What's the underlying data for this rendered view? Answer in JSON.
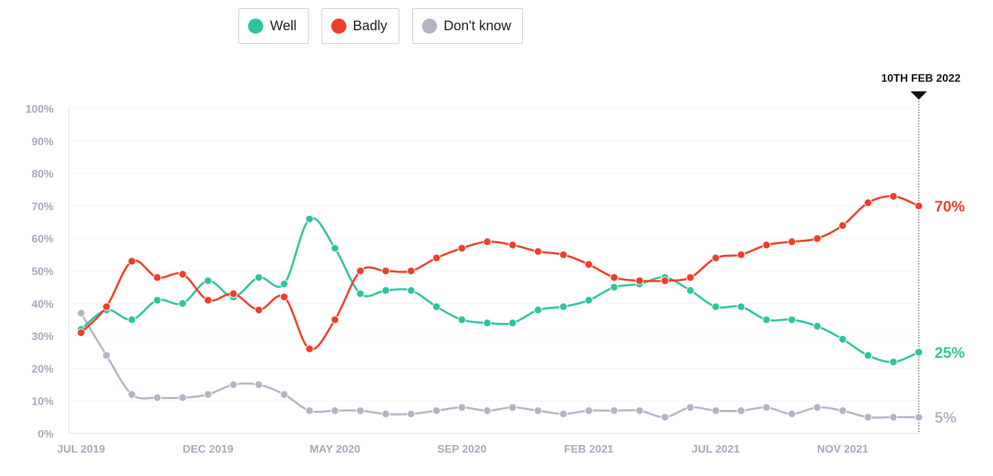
{
  "legend": [
    {
      "label": "Well",
      "color": "#2ec4a0"
    },
    {
      "label": "Badly",
      "color": "#ef3e2a"
    },
    {
      "label": "Don't know",
      "color": "#b2b6c4"
    }
  ],
  "chart_data": {
    "type": "line",
    "title": "",
    "xlabel": "",
    "ylabel": "",
    "ylim": [
      0,
      100
    ],
    "y_ticks": [
      "0%",
      "10%",
      "20%",
      "30%",
      "40%",
      "50%",
      "60%",
      "70%",
      "80%",
      "90%",
      "100%"
    ],
    "x_tick_labels": [
      {
        "label": "JUL 2019",
        "index": 0
      },
      {
        "label": "DEC 2019",
        "index": 5
      },
      {
        "label": "MAY 2020",
        "index": 10
      },
      {
        "label": "SEP 2020",
        "index": 15
      },
      {
        "label": "FEB 2021",
        "index": 20
      },
      {
        "label": "JUL 2021",
        "index": 25
      },
      {
        "label": "NOV 2021",
        "index": 30
      }
    ],
    "marker_label": "10TH FEB 2022",
    "grid": true,
    "series": [
      {
        "name": "Well",
        "color": "#2ec4a0",
        "end_label": "25%",
        "values": [
          32,
          38,
          35,
          41,
          40,
          47,
          42,
          48,
          46,
          66,
          57,
          43,
          44,
          44,
          39,
          35,
          34,
          34,
          38,
          39,
          41,
          45,
          46,
          48,
          44,
          39,
          39,
          35,
          35,
          33,
          29,
          24,
          22,
          25
        ]
      },
      {
        "name": "Badly",
        "color": "#ef3e2a",
        "end_label": "70%",
        "values": [
          31,
          39,
          53,
          48,
          49,
          41,
          43,
          38,
          42,
          26,
          35,
          50,
          50,
          50,
          54,
          57,
          59,
          58,
          56,
          55,
          52,
          48,
          47,
          47,
          48,
          54,
          55,
          58,
          59,
          60,
          64,
          71,
          73,
          70
        ]
      },
      {
        "name": "Don't know",
        "color": "#b2b6c4",
        "end_label": "5%",
        "values": [
          37,
          24,
          12,
          11,
          11,
          12,
          15,
          15,
          12,
          7,
          7,
          7,
          6,
          6,
          7,
          8,
          7,
          8,
          7,
          6,
          7,
          7,
          7,
          5,
          8,
          7,
          7,
          8,
          6,
          8,
          7,
          5,
          5,
          5
        ]
      }
    ]
  }
}
